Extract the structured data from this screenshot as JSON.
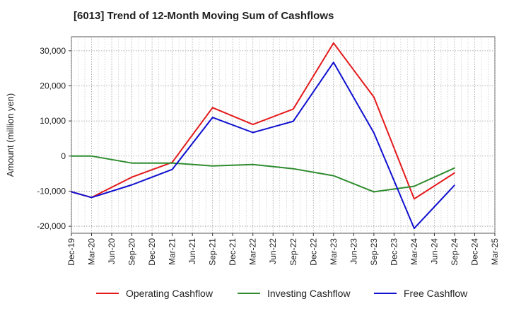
{
  "chart_data": {
    "type": "line",
    "title": "[6013]  Trend of 12-Month Moving Sum of Cashflows",
    "ylabel": "Amount (million yen)",
    "xlabel": "",
    "ylim": [
      -22000,
      34000
    ],
    "yticks": [
      -20000,
      -10000,
      0,
      10000,
      20000,
      30000
    ],
    "ytick_labels": [
      "-20,000",
      "-10,000",
      "0",
      "10,000",
      "20,000",
      "30,000"
    ],
    "categories": [
      "Dec-19",
      "Mar-20",
      "Jun-20",
      "Sep-20",
      "Dec-20",
      "Mar-21",
      "Jun-21",
      "Sep-21",
      "Dec-21",
      "Mar-22",
      "Jun-22",
      "Sep-22",
      "Dec-22",
      "Mar-23",
      "Jun-23",
      "Sep-23",
      "Dec-23",
      "Mar-24",
      "Jun-24",
      "Sep-24",
      "Dec-24",
      "Mar-25"
    ],
    "grid": true,
    "legend_position": "bottom",
    "series": [
      {
        "name": "Operating Cashflow",
        "color": "#e31a1c",
        "values": [
          -10200,
          -11800,
          null,
          -6000,
          null,
          -1800,
          null,
          13800,
          null,
          9000,
          null,
          13400,
          null,
          32200,
          null,
          16800,
          null,
          -12200,
          null,
          -4800,
          null,
          null
        ]
      },
      {
        "name": "Investing Cashflow",
        "color": "#2e8b2e",
        "values": [
          0,
          0,
          null,
          -2000,
          null,
          -2000,
          null,
          -2800,
          null,
          -2400,
          null,
          -3600,
          null,
          -5600,
          null,
          -10200,
          null,
          -8600,
          null,
          -3400,
          null,
          null
        ]
      },
      {
        "name": "Free Cashflow",
        "color": "#1010d0",
        "values": [
          -10200,
          -11800,
          null,
          -8200,
          null,
          -3800,
          null,
          11000,
          null,
          6700,
          null,
          9900,
          null,
          26700,
          null,
          6600,
          null,
          -20600,
          null,
          -8300,
          null,
          null
        ]
      }
    ]
  }
}
